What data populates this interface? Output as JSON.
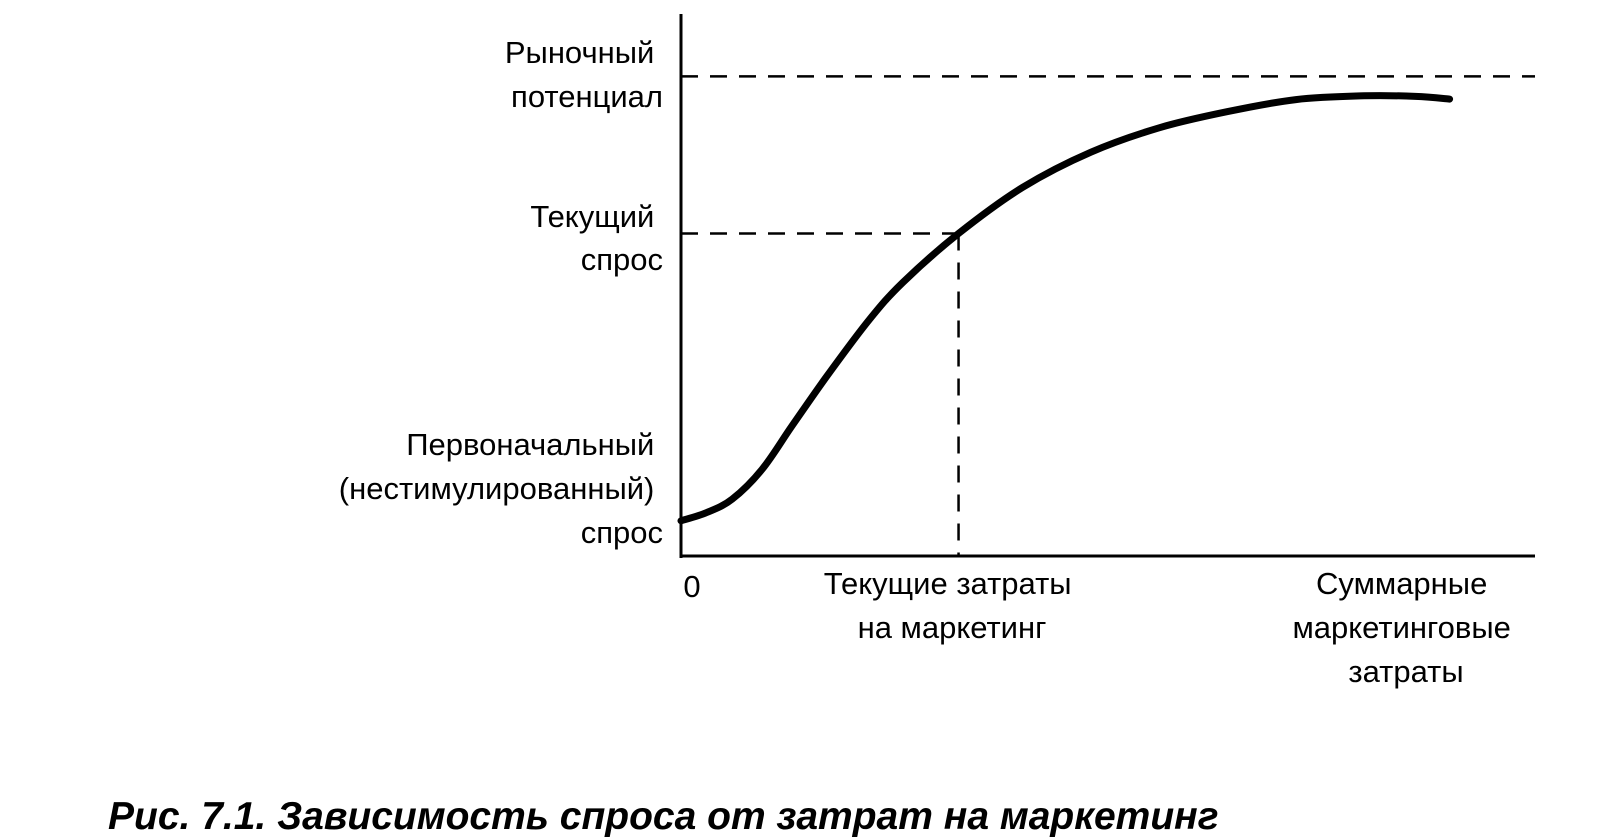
{
  "chart_data": {
    "type": "line",
    "caption": "Рис. 7.1. Зависимость спроса от затрат на маркетинг",
    "y_labels": {
      "market_potential": [
        "Рыночный",
        "потенциал"
      ],
      "current_demand": [
        "Текущий",
        "спрос"
      ],
      "primary_demand": [
        "Первоначальный",
        "(нестимулированный)",
        "спрос"
      ]
    },
    "x_labels": {
      "origin": "0",
      "current_spending": [
        "Текущие затраты",
        "на маркетинг"
      ],
      "total_spending": [
        "Суммарные",
        "маркетинговые",
        "затраты"
      ]
    },
    "xlim": [
      0,
      100
    ],
    "ylim": [
      0,
      100
    ],
    "market_potential_level": 88.5,
    "current_demand_level": 59.5,
    "current_spending_level": 32.5,
    "series": [
      {
        "x": [
          0,
          3,
          6,
          9.5,
          13,
          17,
          22,
          26,
          32.5,
          40,
          48,
          56,
          64,
          72,
          80,
          86,
          90
        ],
        "y": [
          6.5,
          8,
          10.5,
          16,
          24,
          33,
          43.5,
          50.5,
          59.5,
          68,
          74.5,
          79,
          82,
          84.2,
          84.9,
          84.8,
          84.3
        ]
      }
    ],
    "colors": {
      "curve": "#000000",
      "axis": "#000000",
      "guides": "#000000",
      "background": "#ffffff"
    },
    "grid": false
  }
}
